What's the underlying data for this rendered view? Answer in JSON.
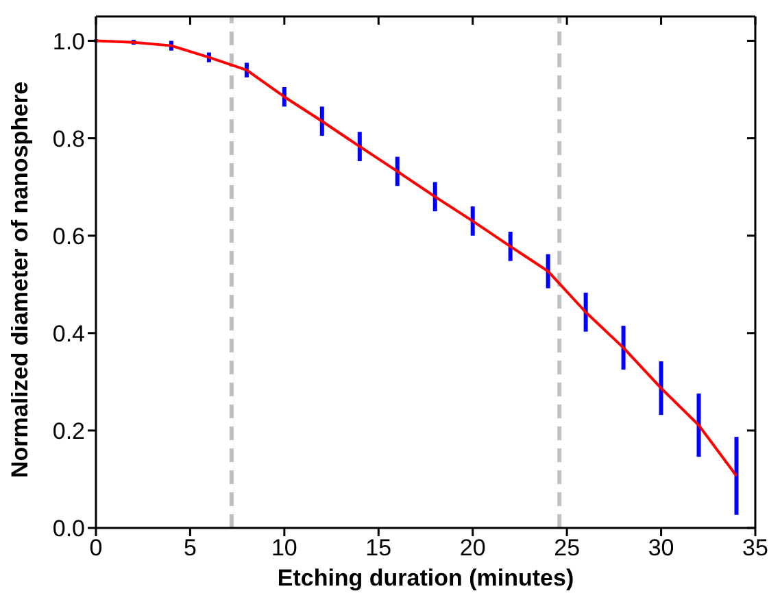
{
  "chart_data": {
    "type": "line",
    "xlabel": "Etching duration (minutes)",
    "ylabel": "Normalized diameter of nanosphere",
    "x": [
      0,
      2,
      4,
      6,
      8,
      10,
      12,
      14,
      16,
      18,
      20,
      22,
      24,
      26,
      28,
      30,
      32,
      34
    ],
    "series": [
      {
        "color": "#ff0000",
        "values": [
          1.0,
          0.997,
          0.99,
          0.966,
          0.94,
          0.885,
          0.835,
          0.783,
          0.732,
          0.68,
          0.63,
          0.578,
          0.527,
          0.443,
          0.37,
          0.287,
          0.211,
          0.107
        ],
        "errors": [
          0.003,
          0.005,
          0.01,
          0.01,
          0.015,
          0.02,
          0.03,
          0.03,
          0.03,
          0.03,
          0.03,
          0.03,
          0.035,
          0.04,
          0.045,
          0.055,
          0.065,
          0.08
        ]
      }
    ],
    "xlim": [
      0,
      35
    ],
    "xticks": [
      0,
      5,
      10,
      15,
      20,
      25,
      30,
      35
    ],
    "ylim": [
      0,
      1.05
    ],
    "yticks": [
      {
        "value": 0,
        "label": "0.0"
      },
      {
        "value": 0.2,
        "label": "0.2"
      },
      {
        "value": 0.4,
        "label": "0.4"
      },
      {
        "value": 0.6,
        "label": "0.6"
      },
      {
        "value": 0.8,
        "label": "0.8"
      },
      {
        "value": 1,
        "label": "1.0"
      }
    ],
    "ref_lines": [
      {
        "axis": "x",
        "value": 7.2,
        "color": "#c0c0c0",
        "line_style": "dashed"
      },
      {
        "axis": "x",
        "value": 24.6,
        "color": "#c0c0c0",
        "line_style": "dashed"
      }
    ],
    "grid": false,
    "legend": false,
    "marker": "none",
    "line_style": "solid"
  }
}
